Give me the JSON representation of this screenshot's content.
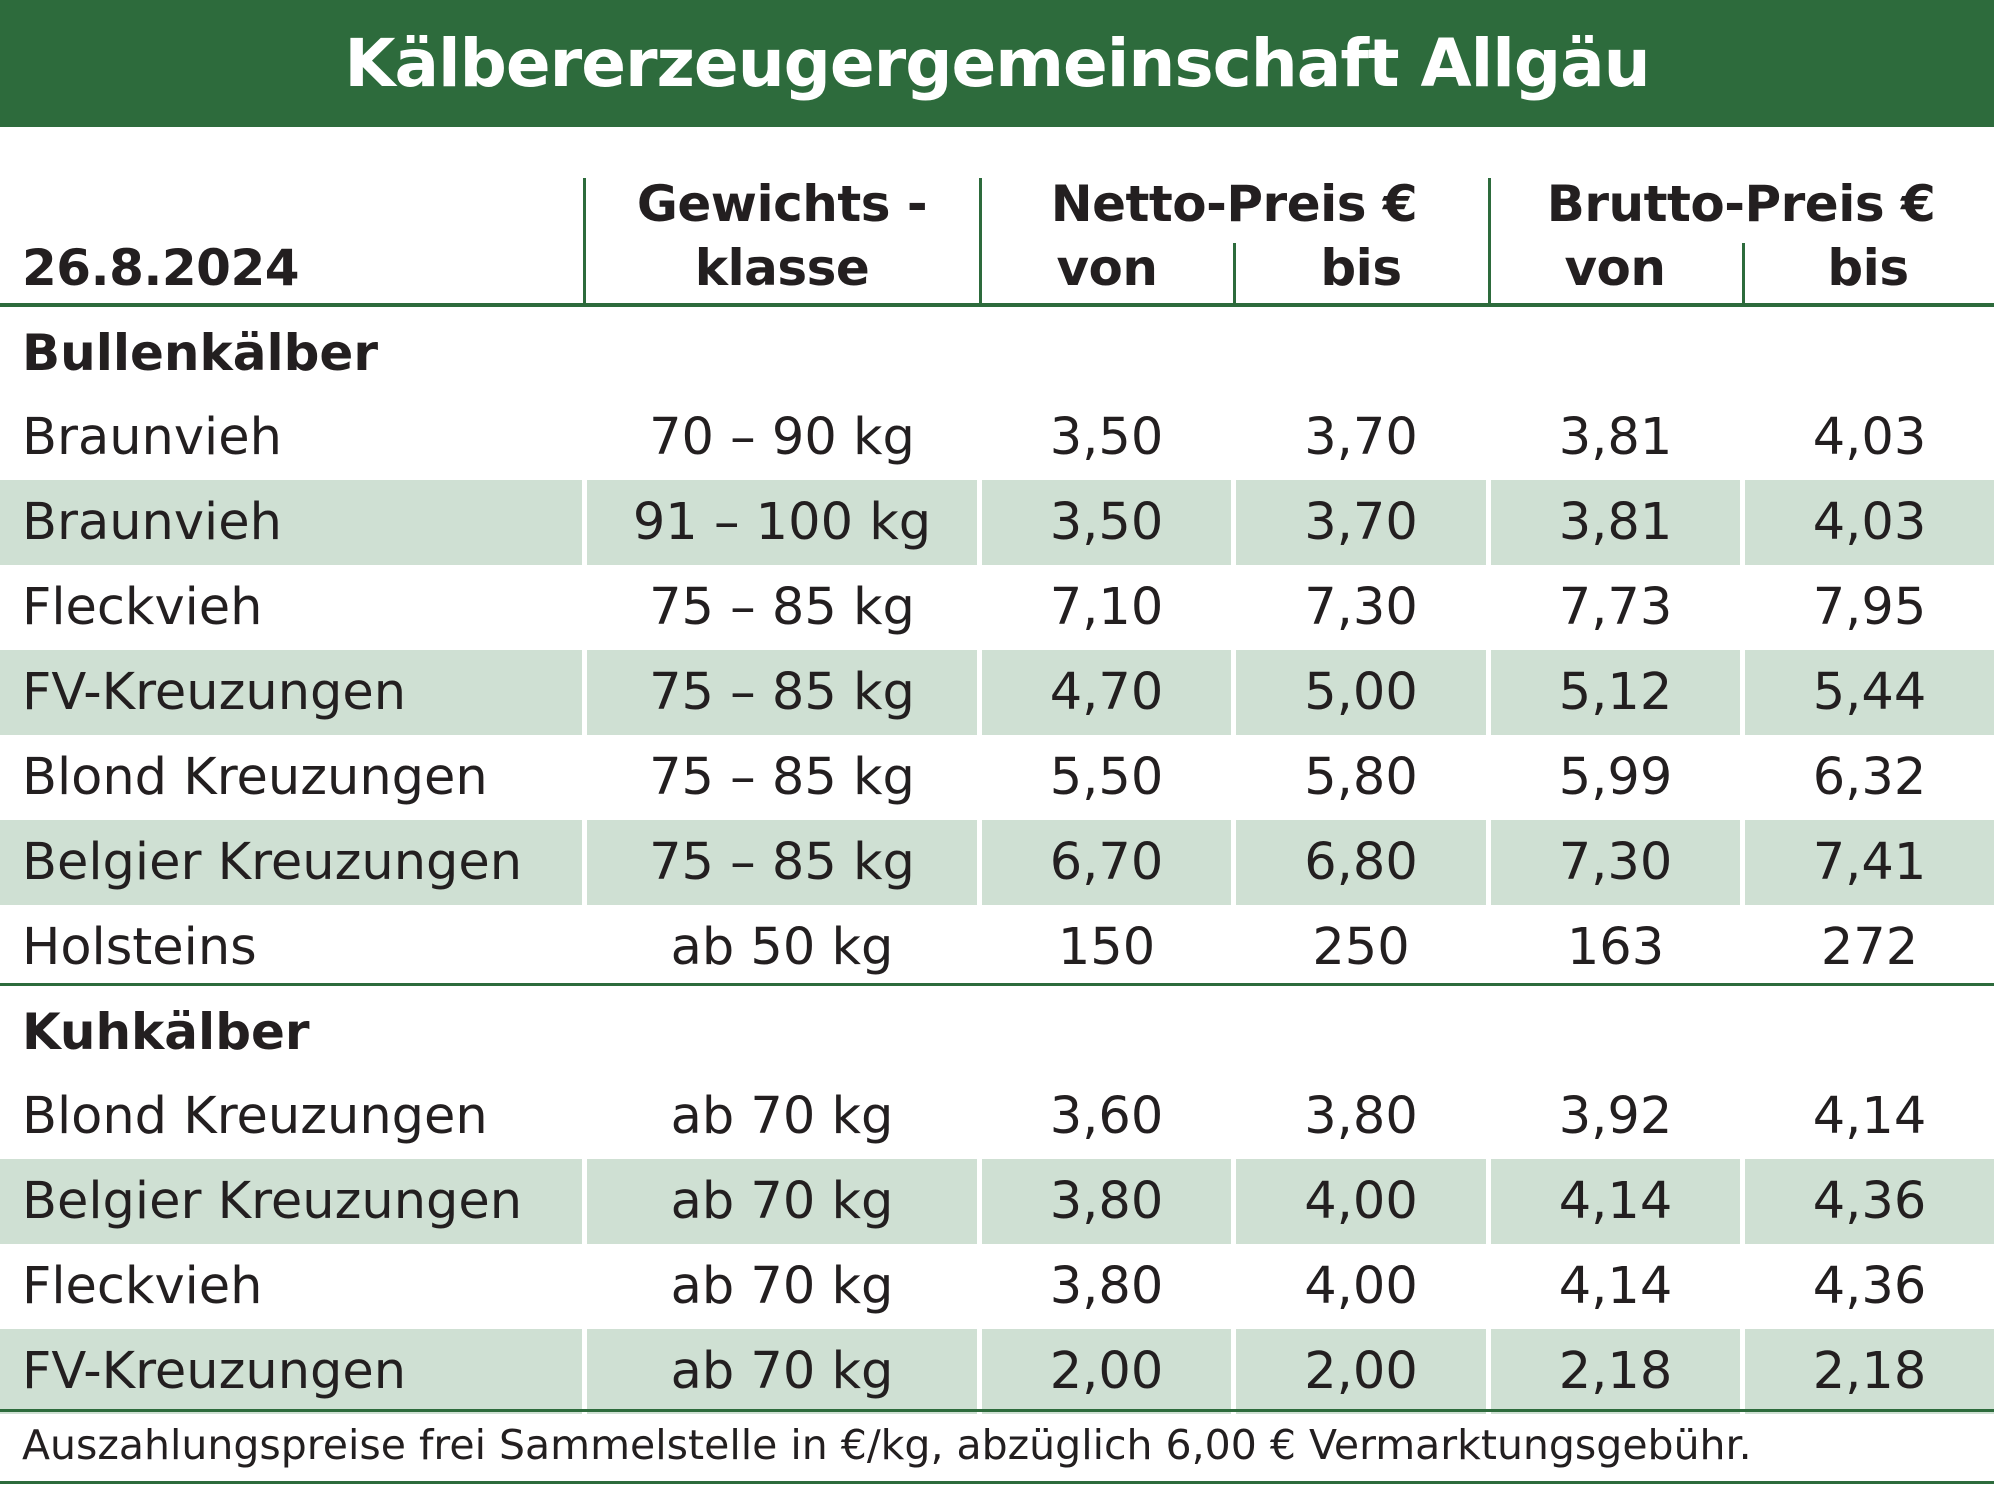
{
  "title": "Kälbererzeugergemeinschaft Allgäu",
  "header": {
    "date": "26.8.2024",
    "weight_line1": "Gewichts -",
    "weight_line2": "klasse",
    "netto": "Netto-Preis €",
    "brutto": "Brutto-Preis €",
    "von": "von",
    "bis": "bis"
  },
  "sections": [
    {
      "title": "Bullenkälber",
      "rows": [
        {
          "name": "Braunvieh",
          "weight": "70 – 90 kg",
          "netto_von": "3,50",
          "netto_bis": "3,70",
          "brutto_von": "3,81",
          "brutto_bis": "4,03"
        },
        {
          "name": "Braunvieh",
          "weight": "91 – 100 kg",
          "netto_von": "3,50",
          "netto_bis": "3,70",
          "brutto_von": "3,81",
          "brutto_bis": "4,03"
        },
        {
          "name": "Fleckvieh",
          "weight": "75 – 85 kg",
          "netto_von": "7,10",
          "netto_bis": "7,30",
          "brutto_von": "7,73",
          "brutto_bis": "7,95"
        },
        {
          "name": "FV-Kreuzungen",
          "weight": "75 – 85 kg",
          "netto_von": "4,70",
          "netto_bis": "5,00",
          "brutto_von": "5,12",
          "brutto_bis": "5,44"
        },
        {
          "name": "Blond Kreuzungen",
          "weight": "75 – 85 kg",
          "netto_von": "5,50",
          "netto_bis": "5,80",
          "brutto_von": "5,99",
          "brutto_bis": "6,32"
        },
        {
          "name": "Belgier Kreuzungen",
          "weight": "75 – 85 kg",
          "netto_von": "6,70",
          "netto_bis": "6,80",
          "brutto_von": "7,30",
          "brutto_bis": "7,41"
        },
        {
          "name": "Holsteins",
          "weight": "ab 50 kg",
          "netto_von": "150",
          "netto_bis": "250",
          "brutto_von": "163",
          "brutto_bis": "272"
        }
      ]
    },
    {
      "title": "Kuhkälber",
      "rows": [
        {
          "name": "Blond Kreuzungen",
          "weight": "ab 70 kg",
          "netto_von": "3,60",
          "netto_bis": "3,80",
          "brutto_von": "3,92",
          "brutto_bis": "4,14"
        },
        {
          "name": "Belgier Kreuzungen",
          "weight": "ab 70 kg",
          "netto_von": "3,80",
          "netto_bis": "4,00",
          "brutto_von": "4,14",
          "brutto_bis": "4,36"
        },
        {
          "name": "Fleckvieh",
          "weight": "ab 70 kg",
          "netto_von": "3,80",
          "netto_bis": "4,00",
          "brutto_von": "4,14",
          "brutto_bis": "4,36"
        },
        {
          "name": "FV-Kreuzungen",
          "weight": "ab 70 kg",
          "netto_von": "2,00",
          "netto_bis": "2,00",
          "brutto_von": "2,18",
          "brutto_bis": "2,18"
        }
      ]
    }
  ],
  "footnote": "Auszahlungspreise frei Sammelstelle in €/kg, abzüglich 6,00 € Vermarktungsgebühr.",
  "colors": {
    "brand_green": "#2d6b3c",
    "row_shade": "#cfe0d3"
  }
}
